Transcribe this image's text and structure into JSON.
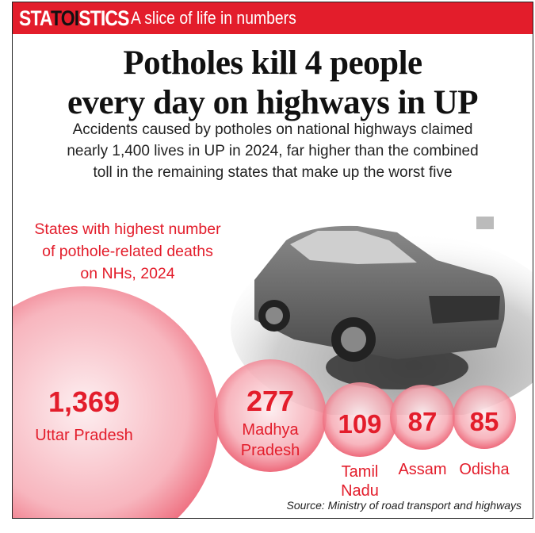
{
  "header": {
    "brand_pre": "STA",
    "brand_toi": "TOI",
    "brand_post": "STICS",
    "tagline": "A slice of life in numbers"
  },
  "title_lines": [
    "Potholes kill 4 people",
    "every day on highways in UP"
  ],
  "subtitle_lines": [
    "Accidents caused by potholes on national highways claimed",
    "nearly 1,400 lives in UP in 2024, far higher than the combined",
    "toll in the remaining states that make up the worst five"
  ],
  "chart_data": {
    "type": "bubble",
    "title_lines": [
      "States with highest number",
      "of pothole-related deaths",
      "on NHs, 2024"
    ],
    "categories": [
      "Uttar Pradesh",
      "Madhya Pradesh",
      "Tamil Nadu",
      "Assam",
      "Odisha"
    ],
    "values": [
      1369,
      277,
      109,
      87,
      85
    ],
    "value_labels": [
      "1,369",
      "277",
      "109",
      "87",
      "85"
    ],
    "label_lines": [
      [
        "Uttar Pradesh"
      ],
      [
        "Madhya",
        "Pradesh"
      ],
      [
        "Tamil",
        "Nadu"
      ],
      [
        "Assam"
      ],
      [
        "Odisha"
      ]
    ],
    "color": "#e31d2b"
  },
  "source": "Source: Ministry of road transport and highways",
  "illustration": "damaged-car-in-pothole"
}
